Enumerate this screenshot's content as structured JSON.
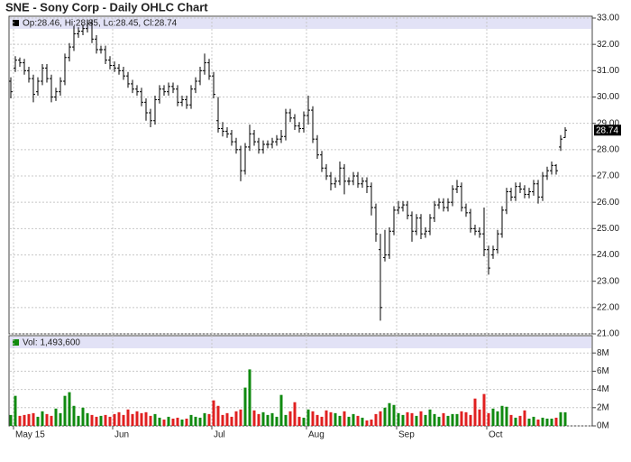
{
  "chart_data": [
    {
      "type": "ohlc",
      "title": "SNE - Sony Corp - Daily OHLC Chart",
      "legend": "Op:28.46, Hi:28.85, Lo:28.45, Cl:28.74",
      "color": "#000000",
      "grid": true,
      "categories": [
        null,
        "May 15",
        null,
        null,
        null,
        null,
        null,
        null,
        null,
        null,
        null,
        null,
        null,
        null,
        null,
        null,
        null,
        null,
        null,
        null,
        null,
        null,
        null,
        "Jun",
        null,
        null,
        null,
        null,
        null,
        null,
        null,
        null,
        null,
        null,
        null,
        null,
        null,
        null,
        null,
        null,
        null,
        null,
        null,
        null,
        null,
        "Jul",
        null,
        null,
        null,
        null,
        null,
        null,
        null,
        null,
        null,
        null,
        null,
        null,
        null,
        null,
        null,
        null,
        null,
        null,
        null,
        null,
        "Aug",
        null,
        null,
        null,
        null,
        null,
        null,
        null,
        null,
        null,
        null,
        null,
        null,
        null,
        null,
        null,
        null,
        null,
        null,
        null,
        "Sep",
        null,
        null,
        null,
        null,
        null,
        null,
        null,
        null,
        null,
        null,
        null,
        null,
        null,
        null,
        null,
        null,
        null,
        null,
        null,
        "Oct",
        null,
        null,
        null,
        null,
        null,
        null,
        null,
        null,
        null,
        null,
        null,
        null,
        null,
        null,
        null,
        null,
        null
      ],
      "open": [
        30.6,
        31.1,
        31.4,
        31.3,
        31.0,
        30.7,
        30.2,
        30.6,
        31.1,
        30.7,
        30.0,
        30.2,
        30.6,
        31.5,
        31.9,
        32.4,
        32.5,
        32.6,
        32.8,
        32.2,
        31.8,
        31.8,
        31.4,
        31.2,
        31.1,
        31.0,
        30.8,
        30.5,
        30.3,
        30.2,
        29.8,
        29.4,
        29.1,
        29.9,
        30.3,
        30.2,
        30.4,
        30.3,
        29.8,
        29.9,
        29.7,
        30.3,
        30.6,
        31.0,
        31.3,
        30.8,
        29.1,
        28.8,
        28.7,
        28.6,
        28.3,
        28.0,
        27.2,
        28.1,
        28.6,
        28.3,
        28.0,
        28.2,
        28.2,
        28.3,
        28.4,
        28.5,
        29.4,
        29.2,
        28.9,
        28.8,
        29.3,
        29.5,
        28.4,
        27.8,
        27.3,
        27.0,
        26.7,
        26.8,
        27.3,
        26.8,
        26.8,
        27.0,
        26.7,
        26.8,
        26.6,
        25.8,
        24.2,
        23.9,
        24.0,
        24.9,
        25.7,
        25.8,
        25.9,
        25.5,
        24.9,
        25.4,
        24.8,
        24.9,
        25.4,
        25.9,
        26.0,
        25.8,
        26.0,
        26.5,
        26.6,
        25.8,
        25.6,
        25.0,
        24.9,
        24.8,
        24.2,
        24.0,
        24.2,
        24.8,
        25.7,
        26.4,
        26.2,
        26.6,
        26.5,
        26.3,
        26.4,
        26.7,
        26.2,
        27.0,
        27.2,
        27.4,
        28.1,
        28.46
      ],
      "high": [
        30.75,
        31.55,
        31.5,
        31.45,
        31.15,
        30.85,
        30.75,
        31.25,
        31.25,
        30.85,
        30.35,
        30.75,
        31.65,
        32.05,
        32.7,
        32.65,
        32.75,
        32.95,
        32.95,
        32.35,
        31.95,
        31.95,
        31.55,
        31.35,
        31.25,
        31.15,
        30.95,
        30.65,
        30.45,
        30.35,
        29.95,
        29.55,
        30.05,
        30.45,
        30.45,
        30.55,
        30.55,
        30.45,
        30.05,
        30.05,
        30.45,
        30.75,
        31.15,
        31.65,
        31.45,
        30.95,
        30.0,
        29.05,
        28.85,
        28.75,
        28.45,
        28.15,
        28.25,
        28.95,
        28.75,
        28.45,
        28.35,
        28.35,
        28.45,
        28.55,
        28.75,
        29.55,
        29.55,
        29.35,
        29.05,
        29.45,
        30.05,
        29.65,
        28.55,
        27.95,
        27.45,
        27.15,
        26.95,
        27.55,
        27.45,
        26.95,
        27.15,
        27.15,
        26.95,
        26.95,
        26.75,
        25.95,
        24.8,
        24.95,
        25.05,
        25.85,
        26.05,
        26.05,
        26.05,
        25.65,
        25.55,
        25.55,
        25.05,
        25.55,
        26.05,
        26.15,
        26.15,
        26.15,
        26.65,
        26.85,
        26.75,
        25.95,
        25.75,
        25.15,
        25.05,
        25.8,
        24.35,
        24.35,
        24.95,
        25.85,
        26.55,
        26.55,
        26.75,
        26.75,
        26.65,
        26.55,
        26.85,
        26.85,
        27.15,
        27.35,
        27.55,
        27.45,
        28.55,
        28.85
      ],
      "low": [
        29.95,
        30.95,
        31.15,
        30.85,
        30.55,
        29.8,
        30.05,
        30.45,
        30.55,
        29.8,
        29.85,
        30.05,
        30.45,
        31.35,
        31.75,
        32.25,
        32.35,
        32.45,
        32.05,
        31.65,
        31.65,
        31.25,
        31.05,
        30.95,
        30.85,
        30.65,
        30.35,
        30.15,
        30.05,
        29.65,
        29.1,
        28.85,
        28.95,
        29.75,
        30.05,
        30.05,
        30.15,
        29.65,
        29.65,
        29.55,
        29.55,
        30.15,
        30.45,
        30.85,
        30.65,
        29.95,
        28.65,
        28.5,
        28.45,
        28.15,
        27.85,
        26.8,
        27.05,
        27.95,
        28.15,
        27.85,
        27.85,
        28.05,
        28.05,
        28.15,
        28.25,
        28.35,
        29.05,
        28.75,
        28.65,
        28.65,
        28.95,
        28.25,
        27.65,
        27.15,
        26.85,
        26.45,
        26.55,
        26.65,
        26.3,
        26.65,
        26.65,
        26.55,
        26.55,
        26.35,
        25.5,
        24.5,
        21.5,
        23.75,
        23.85,
        24.75,
        25.55,
        25.65,
        25.35,
        24.5,
        24.75,
        24.6,
        24.65,
        24.75,
        25.25,
        25.75,
        25.65,
        25.65,
        25.85,
        26.35,
        25.65,
        25.45,
        24.85,
        24.75,
        24.65,
        23.95,
        23.25,
        23.85,
        24.05,
        24.65,
        25.55,
        26.05,
        26.05,
        26.35,
        26.15,
        26.15,
        26.25,
        25.95,
        26.05,
        26.85,
        27.05,
        27.05,
        27.95,
        28.45
      ],
      "close": [
        30.2,
        31.4,
        31.3,
        31.0,
        30.7,
        30.1,
        30.6,
        31.1,
        30.7,
        30.0,
        30.2,
        30.6,
        31.5,
        31.9,
        32.4,
        32.5,
        32.6,
        32.8,
        32.2,
        31.8,
        31.8,
        31.4,
        31.2,
        31.1,
        31.0,
        30.8,
        30.5,
        30.3,
        30.2,
        29.8,
        29.4,
        29.1,
        29.9,
        30.3,
        30.2,
        30.4,
        30.3,
        29.8,
        29.9,
        29.7,
        30.3,
        30.6,
        31.0,
        31.3,
        30.8,
        30.1,
        28.8,
        28.7,
        28.6,
        28.3,
        28.0,
        27.2,
        28.1,
        28.6,
        28.3,
        28.0,
        28.2,
        28.2,
        28.3,
        28.4,
        28.5,
        29.4,
        29.2,
        28.9,
        28.8,
        29.3,
        29.5,
        28.4,
        27.8,
        27.3,
        27.0,
        26.7,
        26.8,
        27.3,
        26.8,
        26.8,
        27.0,
        26.7,
        26.8,
        26.6,
        25.8,
        24.8,
        22.0,
        24.0,
        24.9,
        25.7,
        25.8,
        25.9,
        25.5,
        24.9,
        25.4,
        24.8,
        24.9,
        25.4,
        25.9,
        26.0,
        25.8,
        26.0,
        26.5,
        26.6,
        25.8,
        25.6,
        25.0,
        24.9,
        24.8,
        24.2,
        23.5,
        24.2,
        24.8,
        25.7,
        26.4,
        26.2,
        26.6,
        26.5,
        26.3,
        26.4,
        26.7,
        26.2,
        27.0,
        27.2,
        27.4,
        27.2,
        28.4,
        28.74
      ],
      "ylim": [
        21,
        33
      ],
      "yticks": [
        {
          "value": 21,
          "label": "21.00"
        },
        {
          "value": 22,
          "label": "22.00"
        },
        {
          "value": 23,
          "label": "23.00"
        },
        {
          "value": 24,
          "label": "24.00"
        },
        {
          "value": 25,
          "label": "25.00"
        },
        {
          "value": 26,
          "label": "26.00"
        },
        {
          "value": 27,
          "label": "27.00"
        },
        {
          "value": 28,
          "label": "28.00"
        },
        {
          "value": 29,
          "label": "29.00"
        },
        {
          "value": 30,
          "label": "30.00"
        },
        {
          "value": 31,
          "label": "31.00"
        },
        {
          "value": 32,
          "label": "32.00"
        },
        {
          "value": 33,
          "label": "33.00"
        }
      ]
    },
    {
      "type": "bar",
      "legend": "Vol: 1,493,600",
      "up_color": "#108a10",
      "down_color": "#e02020",
      "grid": true,
      "values": [
        1.2,
        3.3,
        1.1,
        1.2,
        1.3,
        1.4,
        1.0,
        1.6,
        1.3,
        1.1,
        1.9,
        1.4,
        3.3,
        3.7,
        2.2,
        1.1,
        2.0,
        1.4,
        1.2,
        1.0,
        1.1,
        1.2,
        1.0,
        1.3,
        1.5,
        1.2,
        1.8,
        1.3,
        1.6,
        1.4,
        1.5,
        1.1,
        1.3,
        0.9,
        0.7,
        1.0,
        0.8,
        0.9,
        0.7,
        0.8,
        1.2,
        1.0,
        0.9,
        1.4,
        1.3,
        2.8,
        2.2,
        1.2,
        1.4,
        1.0,
        1.6,
        1.8,
        4.2,
        6.2,
        1.7,
        1.3,
        1.5,
        1.2,
        1.4,
        1.0,
        3.4,
        1.2,
        1.6,
        2.6,
        1.0,
        0.9,
        1.8,
        1.6,
        1.2,
        1.0,
        1.7,
        1.5,
        1.4,
        1.1,
        1.6,
        1.0,
        1.3,
        1.1,
        0.9,
        0.6,
        0.7,
        1.3,
        1.6,
        2.0,
        2.5,
        2.3,
        1.4,
        1.2,
        1.5,
        1.4,
        1.1,
        1.6,
        1.2,
        1.8,
        1.3,
        1.0,
        1.4,
        1.1,
        1.3,
        1.3,
        1.6,
        1.5,
        1.2,
        3.0,
        1.8,
        3.5,
        1.4,
        1.9,
        1.6,
        2.2,
        2.1,
        1.2,
        0.9,
        1.1,
        1.7,
        0.8,
        1.0,
        0.7,
        0.9,
        0.8,
        0.8,
        0.9,
        1.5,
        1.4936
      ],
      "ylim": [
        0,
        9.9
      ],
      "yticks": [
        {
          "value": 0,
          "label": "0M"
        },
        {
          "value": 2,
          "label": "2M"
        },
        {
          "value": 4,
          "label": "4M"
        },
        {
          "value": 6,
          "label": "6M"
        },
        {
          "value": 8,
          "label": "8M"
        }
      ]
    }
  ]
}
